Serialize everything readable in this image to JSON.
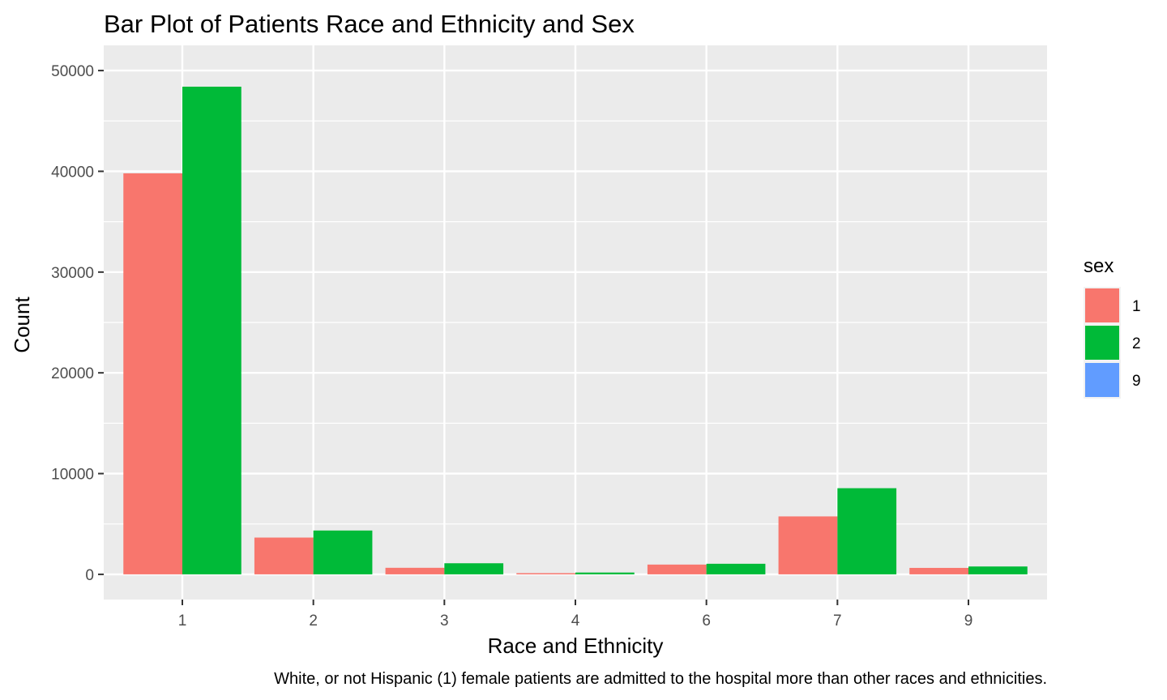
{
  "chart_data": {
    "type": "bar",
    "title": "Bar Plot of Patients Race and Ethnicity and Sex",
    "xlabel": "Race and Ethnicity",
    "ylabel": "Count",
    "caption": "White, or not Hispanic (1) female patients are admitted to the hospital more than other races and ethnicities.",
    "categories": [
      "1",
      "2",
      "3",
      "4",
      "6",
      "7",
      "9"
    ],
    "ylim": [
      -2500,
      52500
    ],
    "yticks": [
      0,
      10000,
      20000,
      30000,
      40000,
      50000
    ],
    "grid": true,
    "legend": {
      "title": "sex",
      "position": "right",
      "entries": [
        "1",
        "2",
        "9"
      ]
    },
    "series": [
      {
        "name": "1",
        "color": "#F8766D",
        "values": [
          39800,
          3650,
          650,
          120,
          970,
          5750,
          640
        ]
      },
      {
        "name": "2",
        "color": "#00BA38",
        "values": [
          48400,
          4350,
          1100,
          180,
          1050,
          8550,
          780
        ]
      },
      {
        "name": "9",
        "color": "#619CFF",
        "values": [
          0,
          0,
          0,
          0,
          0,
          0,
          0
        ]
      }
    ]
  }
}
